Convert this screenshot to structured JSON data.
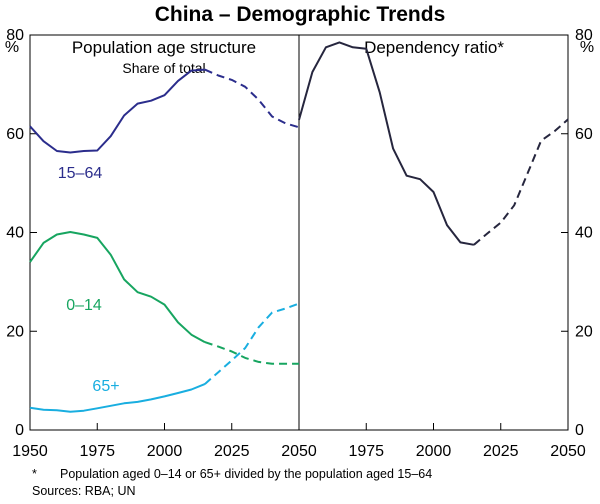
{
  "chart_data": {
    "title": "China – Demographic Trends",
    "y_unit": "%",
    "ylim": [
      0,
      80
    ],
    "yticks": [
      "0",
      "20",
      "40",
      "60",
      "80"
    ],
    "xticks": [
      "1950",
      "1975",
      "2000",
      "2025",
      "2050"
    ],
    "xticks_right": [
      "1975",
      "2000",
      "2025",
      "2050"
    ],
    "footnote_marker": "*",
    "footnote": "Population aged 0–14 or 65+ divided by the population aged 15–64",
    "sources": "Sources: RBA; UN",
    "panels": [
      {
        "title": "Population age structure",
        "subtitle": "Share of total",
        "type": "line",
        "xlim": [
          1950,
          2050
        ],
        "series": [
          {
            "name": "15–64",
            "color": "#2b2d8c",
            "actual": {
              "x": [
                1950,
                1955,
                1960,
                1965,
                1970,
                1975,
                1980,
                1985,
                1990,
                1995,
                2000,
                2005,
                2010,
                2015
              ],
              "y": [
                61.5,
                58.5,
                56.5,
                56.2,
                56.5,
                56.6,
                59.5,
                63.7,
                66.1,
                66.7,
                67.8,
                70.7,
                72.8,
                73.0
              ]
            },
            "projected": {
              "x": [
                2015,
                2020,
                2025,
                2030,
                2035,
                2040,
                2045,
                2050
              ],
              "y": [
                73.0,
                71.8,
                70.9,
                69.5,
                66.9,
                63.5,
                62.1,
                61.3
              ]
            }
          },
          {
            "name": "0–14",
            "color": "#17a560",
            "actual": {
              "x": [
                1950,
                1955,
                1960,
                1965,
                1970,
                1975,
                1980,
                1985,
                1990,
                1995,
                2000,
                2005,
                2010,
                2015
              ],
              "y": [
                34.0,
                37.9,
                39.6,
                40.1,
                39.6,
                38.9,
                35.5,
                30.5,
                27.9,
                27.0,
                25.4,
                21.8,
                19.3,
                17.8
              ]
            },
            "projected": {
              "x": [
                2015,
                2020,
                2025,
                2030,
                2035,
                2040,
                2045,
                2050
              ],
              "y": [
                17.8,
                16.9,
                15.9,
                14.6,
                13.8,
                13.4,
                13.4,
                13.4
              ]
            }
          },
          {
            "name": "65+",
            "color": "#19aee0",
            "actual": {
              "x": [
                1950,
                1955,
                1960,
                1965,
                1970,
                1975,
                1980,
                1985,
                1990,
                1995,
                2000,
                2005,
                2010,
                2015
              ],
              "y": [
                4.5,
                4.1,
                4.0,
                3.7,
                3.9,
                4.4,
                4.9,
                5.4,
                5.7,
                6.2,
                6.8,
                7.5,
                8.2,
                9.3
              ]
            },
            "projected": {
              "x": [
                2015,
                2020,
                2025,
                2030,
                2035,
                2040,
                2045,
                2050
              ],
              "y": [
                9.3,
                11.7,
                14.1,
                16.6,
                20.8,
                23.8,
                24.6,
                25.6
              ]
            }
          }
        ]
      },
      {
        "title": "Dependency ratio*",
        "type": "line",
        "xlim": [
          1950,
          2050
        ],
        "series": [
          {
            "name": "Dependency ratio",
            "color": "#26263e",
            "actual": {
              "x": [
                1950,
                1955,
                1960,
                1965,
                1970,
                1975,
                1980,
                1985,
                1990,
                1995,
                2000,
                2005,
                2010,
                2015
              ],
              "y": [
                62.8,
                72.5,
                77.5,
                78.5,
                77.5,
                77.2,
                68.4,
                57.0,
                51.5,
                50.8,
                48.2,
                41.5,
                38.0,
                37.5
              ]
            },
            "projected": {
              "x": [
                2015,
                2020,
                2025,
                2030,
                2035,
                2040,
                2045,
                2050
              ],
              "y": [
                37.5,
                39.8,
                42.0,
                45.5,
                52.0,
                58.6,
                60.5,
                62.9
              ]
            }
          }
        ]
      }
    ]
  }
}
